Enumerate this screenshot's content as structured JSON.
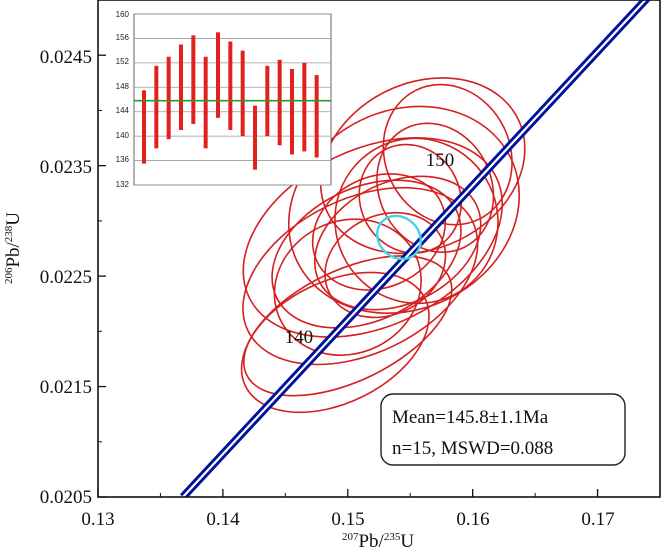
{
  "chart_data": {
    "type": "concordia",
    "xlabel": {
      "sup": "207",
      "base": "Pb/",
      "sup2": "235",
      "tail": "U"
    },
    "ylabel": {
      "sup": "206",
      "base": "Pb/",
      "sup2": "238",
      "tail": "U"
    },
    "xlim": [
      0.13,
      0.175
    ],
    "ylim": [
      0.0205,
      0.025
    ],
    "xticks": [
      0.13,
      0.14,
      0.15,
      0.16,
      0.17
    ],
    "xtick_labels": [
      "0.13",
      "0.14",
      "0.15",
      "0.16",
      "0.17"
    ],
    "yticks": [
      0.0205,
      0.0215,
      0.0225,
      0.0235,
      0.0245
    ],
    "ytick_labels": [
      "0.0205",
      "0.0215",
      "0.0225",
      "0.0235",
      "0.0245"
    ],
    "concordia_points": [
      [
        0.1368,
        0.0205
      ],
      [
        0.1763,
        0.0253
      ]
    ],
    "age_labels": [
      {
        "text": "140",
        "x": 0.1459,
        "y": 0.02195
      },
      {
        "text": "150",
        "x": 0.1572,
        "y": 0.02355
      }
    ],
    "ellipses": [
      {
        "x": 0.152,
        "y": 0.02285,
        "rx": 0.011,
        "ry": 0.0008
      },
      {
        "x": 0.156,
        "y": 0.0235,
        "rx": 0.0085,
        "ry": 0.00075
      },
      {
        "x": 0.1545,
        "y": 0.0231,
        "rx": 0.0095,
        "ry": 0.0009
      },
      {
        "x": 0.151,
        "y": 0.0225,
        "rx": 0.01,
        "ry": 0.0007
      },
      {
        "x": 0.1555,
        "y": 0.023,
        "rx": 0.0065,
        "ry": 0.00075
      },
      {
        "x": 0.1515,
        "y": 0.0227,
        "rx": 0.008,
        "ry": 0.0006
      },
      {
        "x": 0.158,
        "y": 0.0236,
        "rx": 0.005,
        "ry": 0.00065
      },
      {
        "x": 0.15,
        "y": 0.0224,
        "rx": 0.006,
        "ry": 0.0006
      },
      {
        "x": 0.1525,
        "y": 0.0229,
        "rx": 0.0055,
        "ry": 0.0005
      },
      {
        "x": 0.154,
        "y": 0.0228,
        "rx": 0.007,
        "ry": 0.00055
      },
      {
        "x": 0.15,
        "y": 0.02205,
        "rx": 0.009,
        "ry": 0.0005
      },
      {
        "x": 0.157,
        "y": 0.0233,
        "rx": 0.0045,
        "ry": 0.0006
      },
      {
        "x": 0.153,
        "y": 0.0226,
        "rx": 0.005,
        "ry": 0.00045
      },
      {
        "x": 0.149,
        "y": 0.0219,
        "rx": 0.008,
        "ry": 0.00055
      },
      {
        "x": 0.155,
        "y": 0.0232,
        "rx": 0.004,
        "ry": 0.0005
      }
    ],
    "mean_ellipse": {
      "x": 0.1541,
      "y": 0.02285,
      "rx": 0.0016,
      "ry": 0.00021
    },
    "result_text": [
      "Mean=145.8±1.1Ma",
      "n=15, MSWD=0.088"
    ],
    "inset": {
      "type": "bar-range",
      "ylim": [
        132,
        160
      ],
      "yticks": [
        132,
        136,
        140,
        144,
        148,
        152,
        156,
        160
      ],
      "ytick_labels": [
        "132",
        "136",
        "140",
        "144",
        "148",
        "152",
        "156",
        "160"
      ],
      "mean": 145.8,
      "bars": [
        [
          135.5,
          147.5
        ],
        [
          138,
          151.5
        ],
        [
          139.5,
          153
        ],
        [
          141,
          155
        ],
        [
          142,
          156.5
        ],
        [
          138,
          153
        ],
        [
          143,
          157
        ],
        [
          141,
          155.5
        ],
        [
          140,
          154
        ],
        [
          134.5,
          145
        ],
        [
          140,
          151.5
        ],
        [
          138.5,
          152.5
        ],
        [
          137,
          151
        ],
        [
          137.5,
          152
        ],
        [
          136.5,
          150
        ]
      ]
    }
  },
  "colors": {
    "frame": "#111111",
    "ellipse": "#d42020",
    "concordia_dark": "#00129a",
    "concordia_light": "#ffffff",
    "mean_ellipse": "#3fd6e8",
    "inset_bar": "#e3201b",
    "inset_mean": "#2a9a2a",
    "inset_grid": "#9a9a9a"
  }
}
